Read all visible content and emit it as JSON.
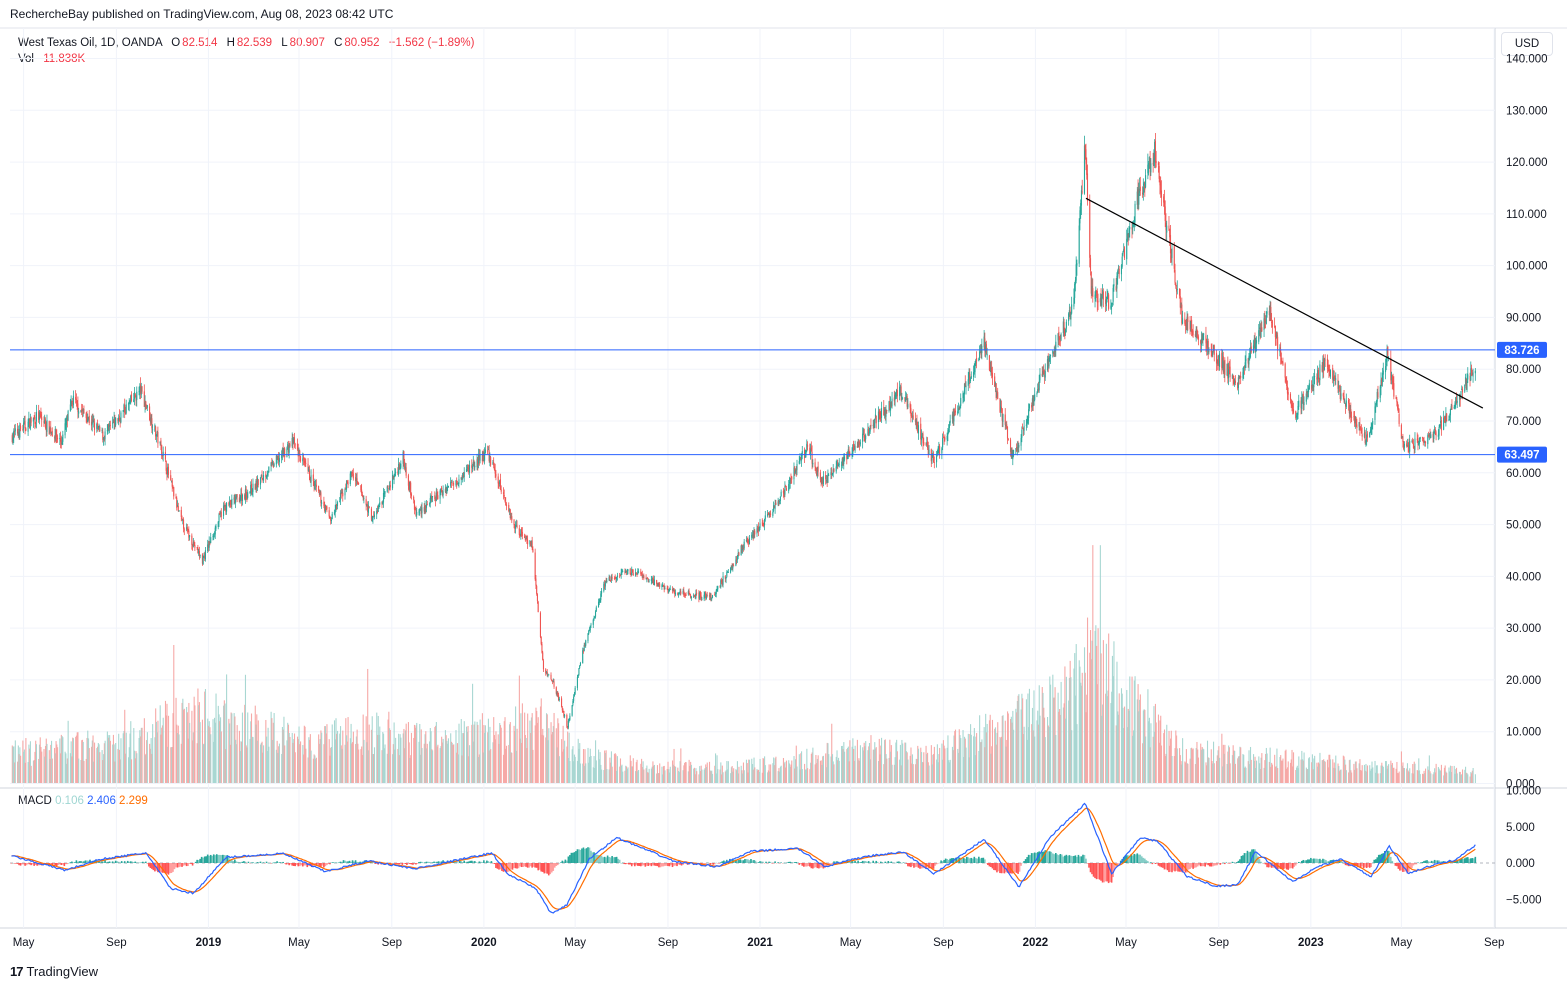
{
  "header": {
    "credit": "RechercheBay published on TradingView.com, Aug 08, 2023 08:42 UTC"
  },
  "legend": {
    "symbol": "West Texas Oil, 1D, OANDA",
    "o_label": "O",
    "o": "82.514",
    "h_label": "H",
    "h": "82.539",
    "l_label": "L",
    "l": "80.907",
    "c_label": "C",
    "c": "80.952",
    "change": "−1.562 (−1.89%)",
    "vol_label": "Vol",
    "vol": "11.838K"
  },
  "macd_legend": {
    "label": "MACD",
    "hist": "0.106",
    "macd": "2.406",
    "signal": "2.299"
  },
  "currency": "USD",
  "footer": {
    "brand": "TradingView",
    "logo_glyph": "17"
  },
  "colors": {
    "up": "#26a69a",
    "down": "#ef5350",
    "up_vol": "#a8d7d2",
    "down_vol": "#f6a9a7",
    "hline": "#2962ff",
    "trend": "#000000",
    "macd": "#2962ff",
    "signal": "#ff6d00",
    "hist_up": "#26a69a",
    "hist_down": "#ff5252",
    "grid": "#f0f3fa"
  },
  "chart_data": [
    {
      "type": "candlestick",
      "title": "West Texas Oil, 1D, OANDA",
      "x_ticks": [
        "May",
        "Sep",
        "2019",
        "May",
        "Sep",
        "2020",
        "May",
        "Sep",
        "2021",
        "May",
        "Sep",
        "2022",
        "May",
        "Sep",
        "2023",
        "May",
        "Sep"
      ],
      "y_ticks": [
        "140.000",
        "130.000",
        "120.000",
        "110.000",
        "100.000",
        "90.000",
        "80.000",
        "70.000",
        "60.000",
        "50.000",
        "40.000",
        "30.000",
        "20.000",
        "10.000",
        "0.000"
      ],
      "ylim": [
        0,
        140
      ],
      "close_path": [
        [
          "2018-04-15",
          67
        ],
        [
          "2018-05-20",
          71
        ],
        [
          "2018-06-20",
          66
        ],
        [
          "2018-07-05",
          74
        ],
        [
          "2018-08-15",
          67
        ],
        [
          "2018-10-03",
          76
        ],
        [
          "2018-11-01",
          64
        ],
        [
          "2018-11-25",
          51
        ],
        [
          "2018-12-24",
          43
        ],
        [
          "2019-01-20",
          53
        ],
        [
          "2019-03-01",
          57
        ],
        [
          "2019-04-23",
          66
        ],
        [
          "2019-06-12",
          51
        ],
        [
          "2019-07-10",
          60
        ],
        [
          "2019-08-07",
          51
        ],
        [
          "2019-09-16",
          63
        ],
        [
          "2019-10-03",
          52
        ],
        [
          "2019-11-20",
          58
        ],
        [
          "2020-01-06",
          64
        ],
        [
          "2020-02-10",
          50
        ],
        [
          "2020-03-05",
          46
        ],
        [
          "2020-03-20",
          22
        ],
        [
          "2020-04-01",
          20
        ],
        [
          "2020-04-21",
          11
        ],
        [
          "2020-05-10",
          25
        ],
        [
          "2020-06-10",
          39
        ],
        [
          "2020-07-15",
          41
        ],
        [
          "2020-09-08",
          37
        ],
        [
          "2020-10-30",
          36
        ],
        [
          "2020-12-10",
          46
        ],
        [
          "2021-01-20",
          53
        ],
        [
          "2021-03-05",
          65
        ],
        [
          "2021-03-24",
          58
        ],
        [
          "2021-05-01",
          64
        ],
        [
          "2021-07-06",
          76
        ],
        [
          "2021-08-20",
          62
        ],
        [
          "2021-10-25",
          85
        ],
        [
          "2021-12-02",
          63
        ],
        [
          "2022-01-10",
          79
        ],
        [
          "2022-02-20",
          92
        ],
        [
          "2022-03-08",
          124
        ],
        [
          "2022-03-16",
          95
        ],
        [
          "2022-04-11",
          93
        ],
        [
          "2022-05-17",
          113
        ],
        [
          "2022-06-08",
          122
        ],
        [
          "2022-07-14",
          90
        ],
        [
          "2022-08-16",
          85
        ],
        [
          "2022-09-26",
          77
        ],
        [
          "2022-11-07",
          92
        ],
        [
          "2022-12-09",
          71
        ],
        [
          "2023-01-18",
          81
        ],
        [
          "2023-03-17",
          66
        ],
        [
          "2023-04-12",
          83
        ],
        [
          "2023-05-04",
          65
        ],
        [
          "2023-06-12",
          67
        ],
        [
          "2023-07-10",
          73
        ],
        [
          "2023-08-07",
          81
        ]
      ],
      "horizontal_levels": [
        {
          "label": "83.726",
          "value": 83.726
        },
        {
          "label": "63.497",
          "value": 63.497
        }
      ],
      "trendline": {
        "start": [
          "2022-03-09",
          113
        ],
        "end": [
          "2023-08-17",
          72.5
        ]
      },
      "last_close": 80.952
    },
    {
      "type": "bar",
      "title": "Vol",
      "value_axis_ticks": [
        "30.000",
        "20.000",
        "10.000",
        "0.000"
      ],
      "approx_volume_k_by_month": [
        [
          "2018-05",
          6
        ],
        [
          "2018-07",
          7
        ],
        [
          "2018-09",
          7
        ],
        [
          "2018-11",
          12
        ],
        [
          "2018-12",
          13
        ],
        [
          "2019-02",
          11
        ],
        [
          "2019-05",
          8
        ],
        [
          "2019-08",
          10
        ],
        [
          "2019-10",
          8
        ],
        [
          "2020-01",
          9
        ],
        [
          "2020-03",
          12
        ],
        [
          "2020-05",
          5
        ],
        [
          "2020-08",
          3
        ],
        [
          "2020-11",
          3
        ],
        [
          "2021-02",
          4
        ],
        [
          "2021-05",
          7
        ],
        [
          "2021-08",
          5
        ],
        [
          "2021-11",
          11
        ],
        [
          "2022-02",
          16
        ],
        [
          "2022-03",
          24
        ],
        [
          "2022-05",
          15
        ],
        [
          "2022-07",
          6
        ],
        [
          "2022-10",
          5
        ],
        [
          "2023-01",
          4
        ],
        [
          "2023-04",
          3
        ],
        [
          "2023-08",
          2
        ]
      ]
    },
    {
      "type": "line",
      "title": "MACD",
      "y_ticks": [
        "10.000",
        "5.000",
        "0.000",
        "−5.000"
      ],
      "ylim": [
        -7,
        10
      ],
      "macd_path": [
        [
          "2018-04-15",
          1
        ],
        [
          "2018-06-25",
          -1
        ],
        [
          "2018-08-10",
          0.5
        ],
        [
          "2018-10-10",
          1.4
        ],
        [
          "2018-11-12",
          -3.5
        ],
        [
          "2018-12-12",
          -4.2
        ],
        [
          "2019-01-25",
          0.8
        ],
        [
          "2019-04-10",
          1.3
        ],
        [
          "2019-06-05",
          -1.2
        ],
        [
          "2019-08-01",
          0.3
        ],
        [
          "2019-10-01",
          -0.8
        ],
        [
          "2019-12-15",
          0.8
        ],
        [
          "2020-01-12",
          1.4
        ],
        [
          "2020-02-01",
          -1.5
        ],
        [
          "2020-03-10",
          -3.5
        ],
        [
          "2020-03-30",
          -7
        ],
        [
          "2020-04-20",
          -5.8
        ],
        [
          "2020-05-20",
          0.6
        ],
        [
          "2020-06-25",
          3.5
        ],
        [
          "2020-09-10",
          0.2
        ],
        [
          "2020-11-05",
          -0.5
        ],
        [
          "2020-12-20",
          1.6
        ],
        [
          "2021-02-20",
          2
        ],
        [
          "2021-03-28",
          -0.5
        ],
        [
          "2021-05-20",
          0.9
        ],
        [
          "2021-07-10",
          1.5
        ],
        [
          "2021-08-20",
          -1.5
        ],
        [
          "2021-10-25",
          3.3
        ],
        [
          "2021-12-10",
          -3.3
        ],
        [
          "2022-01-20",
          3.5
        ],
        [
          "2022-03-08",
          8.2
        ],
        [
          "2022-04-12",
          -1.5
        ],
        [
          "2022-05-20",
          3.5
        ],
        [
          "2022-06-12",
          3
        ],
        [
          "2022-07-20",
          -1.8
        ],
        [
          "2022-08-28",
          -3.2
        ],
        [
          "2022-09-26",
          -3
        ],
        [
          "2022-10-20",
          1.6
        ],
        [
          "2022-12-08",
          -2.6
        ],
        [
          "2023-01-10",
          -0.5
        ],
        [
          "2023-02-10",
          0.5
        ],
        [
          "2023-03-22",
          -1.9
        ],
        [
          "2023-04-15",
          2.3
        ],
        [
          "2023-05-10",
          -1.4
        ],
        [
          "2023-06-15",
          -0.2
        ],
        [
          "2023-07-10",
          0.4
        ],
        [
          "2023-08-07",
          2.406
        ]
      ]
    }
  ]
}
